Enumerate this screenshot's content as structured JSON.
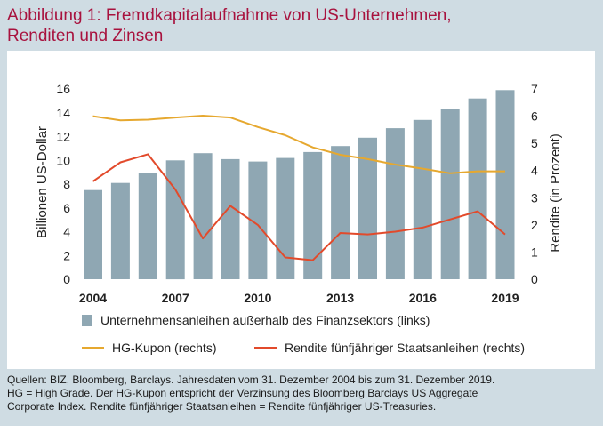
{
  "title": {
    "line1": "Abbildung 1: Fremdkapitalaufnahme von US-Unternehmen,",
    "line2": "Renditen und Zinsen"
  },
  "chart_data": {
    "type": "bar+line",
    "years": [
      2004,
      2005,
      2006,
      2007,
      2008,
      2009,
      2010,
      2011,
      2012,
      2013,
      2014,
      2015,
      2016,
      2017,
      2018,
      2019
    ],
    "x_tick_labels": [
      "2004",
      "2007",
      "2010",
      "2013",
      "2016",
      "2019"
    ],
    "ylabel_left": "Billionen US-Dollar",
    "ylabel_right": "Rendite (in Prozent)",
    "ylim_left": [
      0,
      16
    ],
    "ylim_right": [
      0,
      7
    ],
    "y_ticks_left": [
      "0",
      "2",
      "4",
      "6",
      "8",
      "10",
      "12",
      "14",
      "16"
    ],
    "y_ticks_right": [
      "0",
      "1",
      "2",
      "3",
      "4",
      "5",
      "6",
      "7"
    ],
    "series": [
      {
        "name": "Unternehmensanleihen außerhalb des Finanzsektors (links)",
        "axis": "left",
        "type": "bar",
        "color": "#8fa7b3",
        "values": [
          7.5,
          8.1,
          8.9,
          10.0,
          10.6,
          10.1,
          9.9,
          10.2,
          10.7,
          11.2,
          11.9,
          12.7,
          13.4,
          14.3,
          15.2,
          15.9
        ]
      },
      {
        "name": "HG-Kupon (rechts)",
        "axis": "right",
        "type": "line",
        "color": "#e6a82f",
        "values": [
          6.0,
          5.85,
          5.87,
          5.95,
          6.02,
          5.95,
          5.6,
          5.3,
          4.85,
          4.58,
          4.42,
          4.22,
          4.07,
          3.9,
          3.97,
          3.97
        ]
      },
      {
        "name": "Rendite fünfjähriger Staatsanleihen (rechts)",
        "axis": "right",
        "type": "line",
        "color": "#e24a2b",
        "values": [
          3.6,
          4.3,
          4.6,
          3.3,
          1.5,
          2.7,
          2.0,
          0.8,
          0.7,
          1.7,
          1.65,
          1.75,
          1.9,
          2.2,
          2.5,
          1.65
        ]
      }
    ],
    "grid": false,
    "legend_position": "bottom"
  },
  "source": {
    "line1": "Quellen: BIZ, Bloomberg, Barclays. Jahresdaten vom 31. Dezember 2004 bis zum 31. Dezember 2019.",
    "line2": "HG = High Grade. Der HG-Kupon entspricht der Verzinsung des Bloomberg Barclays US Aggregate",
    "line3": "Corporate Index. Rendite fünfjähriger Staatsanleihen = Rendite fünfjähriger US-Treasuries."
  }
}
